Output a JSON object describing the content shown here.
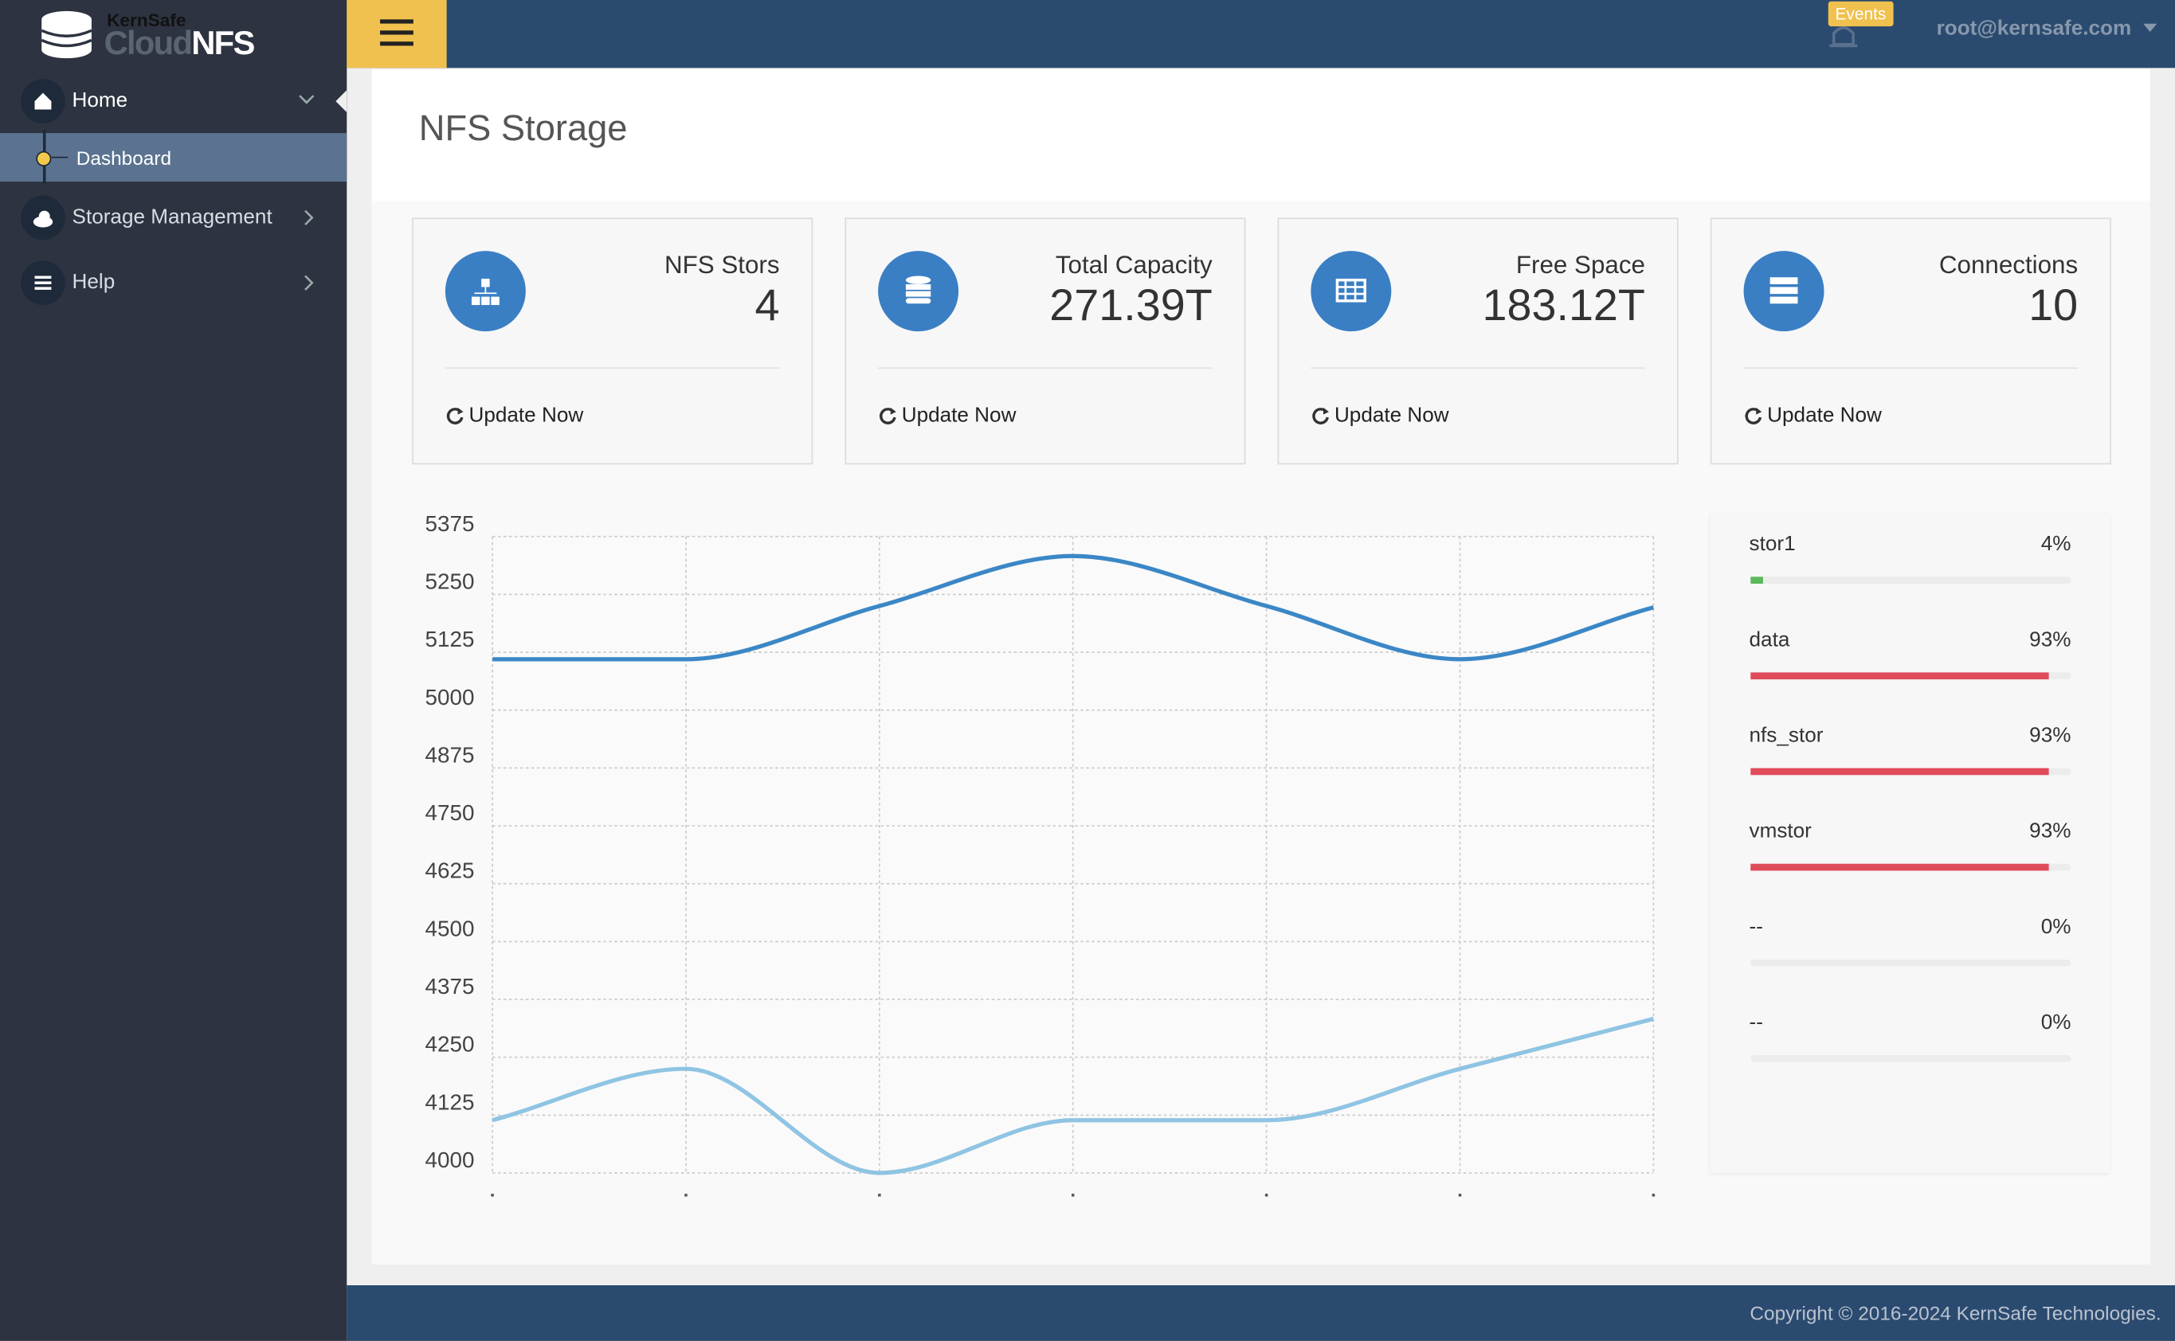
{
  "logo": {
    "brand": "KernSafe",
    "product_a": "Cloud",
    "product_b": "NFS"
  },
  "sidebar": {
    "items": [
      {
        "label": "Home",
        "children": [
          "Dashboard"
        ]
      },
      {
        "label": "Storage Management"
      },
      {
        "label": "Help"
      }
    ]
  },
  "header": {
    "events": "Events",
    "user": "root@kernsafe.com"
  },
  "page_title": "NFS Storage",
  "cards": [
    {
      "label": "NFS Stors",
      "value": 4,
      "action": "Update Now"
    },
    {
      "label": "Total Capacity",
      "value": "271.39T",
      "action": "Update Now"
    },
    {
      "label": "Free Space",
      "value": "183.12T",
      "action": "Update Now"
    },
    {
      "label": "Connections",
      "value": 10,
      "action": "Update Now"
    }
  ],
  "chart_data": {
    "type": "line",
    "categories": [
      null,
      null,
      null,
      null,
      null,
      null,
      null
    ],
    "series": [
      {
        "color": "#3b87c6",
        "values": [
          5110,
          5110,
          5225,
          5333,
          5225,
          5110,
          5222
        ]
      },
      {
        "color": "#8fc4e3",
        "values": [
          4114,
          4225,
          4000,
          4114,
          4114,
          4225,
          4333
        ]
      }
    ],
    "ylim": [
      4000,
      5375
    ],
    "yticks": [
      4000,
      4125,
      4250,
      4375,
      4500,
      4625,
      4750,
      4875,
      5000,
      5125,
      5250,
      5375
    ],
    "grid": true
  },
  "storage": [
    {
      "name": "stor1",
      "value": 4,
      "value_label": "4%",
      "color": "#5cb85c"
    },
    {
      "name": "data",
      "value": 93,
      "value_label": "93%",
      "color": "#e04b59"
    },
    {
      "name": "nfs_stor",
      "value": 93,
      "value_label": "93%",
      "color": "#e04b59"
    },
    {
      "name": "vmstor",
      "value": 93,
      "value_label": "93%",
      "color": "#e04b59"
    },
    {
      "name": "--",
      "value": 0,
      "value_label": "0%",
      "color": "#e04b59"
    },
    {
      "name": "--",
      "value": 0,
      "value_label": "0%",
      "color": "#e04b59"
    }
  ],
  "footer": "Copyright © 2016-2024 KernSafe Technologies."
}
